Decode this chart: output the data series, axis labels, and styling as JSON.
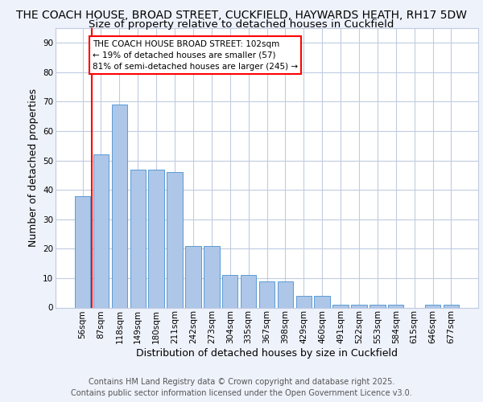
{
  "title": "THE COACH HOUSE, BROAD STREET, CUCKFIELD, HAYWARDS HEATH, RH17 5DW",
  "subtitle": "Size of property relative to detached houses in Cuckfield",
  "xlabel": "Distribution of detached houses by size in Cuckfield",
  "ylabel": "Number of detached properties",
  "categories": [
    "56sqm",
    "87sqm",
    "118sqm",
    "149sqm",
    "180sqm",
    "211sqm",
    "242sqm",
    "273sqm",
    "304sqm",
    "335sqm",
    "367sqm",
    "398sqm",
    "429sqm",
    "460sqm",
    "491sqm",
    "522sqm",
    "553sqm",
    "584sqm",
    "615sqm",
    "646sqm",
    "677sqm"
  ],
  "values": [
    38,
    52,
    69,
    47,
    47,
    46,
    21,
    21,
    11,
    11,
    9,
    9,
    4,
    4,
    1,
    1,
    1,
    1,
    0,
    1,
    1
  ],
  "bar_color": "#aec6e8",
  "bar_edge_color": "#5b9bd5",
  "ylim": [
    0,
    95
  ],
  "yticks": [
    0,
    10,
    20,
    30,
    40,
    50,
    60,
    70,
    80,
    90
  ],
  "red_line_x": 0.5,
  "annotation_box_text": "THE COACH HOUSE BROAD STREET: 102sqm\n← 19% of detached houses are smaller (57)\n81% of semi-detached houses are larger (245) →",
  "footer_text": "Contains HM Land Registry data © Crown copyright and database right 2025.\nContains public sector information licensed under the Open Government Licence v3.0.",
  "background_color": "#eef2fb",
  "plot_background_color": "#ffffff",
  "grid_color": "#c0cce0",
  "title_fontsize": 10,
  "subtitle_fontsize": 9.5,
  "axis_label_fontsize": 9,
  "tick_fontsize": 7.5,
  "footer_fontsize": 7
}
